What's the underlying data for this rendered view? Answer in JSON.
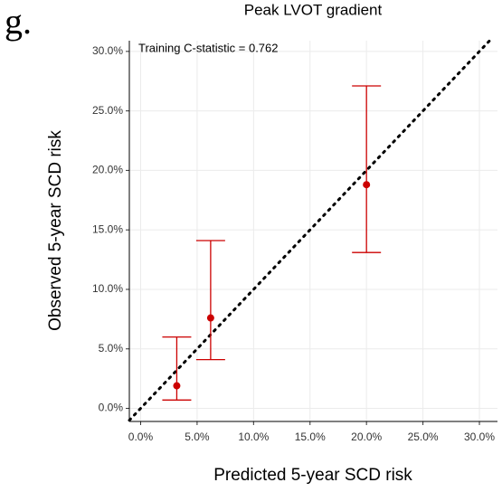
{
  "chart_data": {
    "type": "scatter",
    "panel_label": "g.",
    "title": "Peak LVOT gradient",
    "x_label": "Predicted 5-year SCD risk",
    "y_label": "Observed 5-year SCD risk",
    "annotation": "Training C-statistic = 0.762",
    "series": [
      {
        "color": "#cc0000",
        "x": [
          3.2,
          6.2,
          20.0
        ],
        "values": [
          1.9,
          7.6,
          18.8
        ],
        "lower": [
          0.7,
          4.1,
          13.1
        ],
        "upper": [
          6.0,
          14.1,
          27.1
        ]
      }
    ],
    "xlim": [
      -1,
      31.6
    ],
    "ylim": [
      -1.1,
      30.9
    ],
    "xticks": [
      {
        "value": 0,
        "label": "0.0%"
      },
      {
        "value": 5,
        "label": "5.0%"
      },
      {
        "value": 10,
        "label": "10.0%"
      },
      {
        "value": 15,
        "label": "15.0%"
      },
      {
        "value": 20,
        "label": "20.0%"
      },
      {
        "value": 25,
        "label": "25.0%"
      },
      {
        "value": 30,
        "label": "30.0%"
      }
    ],
    "yticks": [
      {
        "value": 0,
        "label": "0.0%"
      },
      {
        "value": 5,
        "label": "5.0%"
      },
      {
        "value": 10,
        "label": "10.0%"
      },
      {
        "value": 15,
        "label": "15.0%"
      },
      {
        "value": 20,
        "label": "20.0%"
      },
      {
        "value": 25,
        "label": "25.0%"
      },
      {
        "value": 30,
        "label": "30.0%"
      }
    ],
    "grid": true
  }
}
